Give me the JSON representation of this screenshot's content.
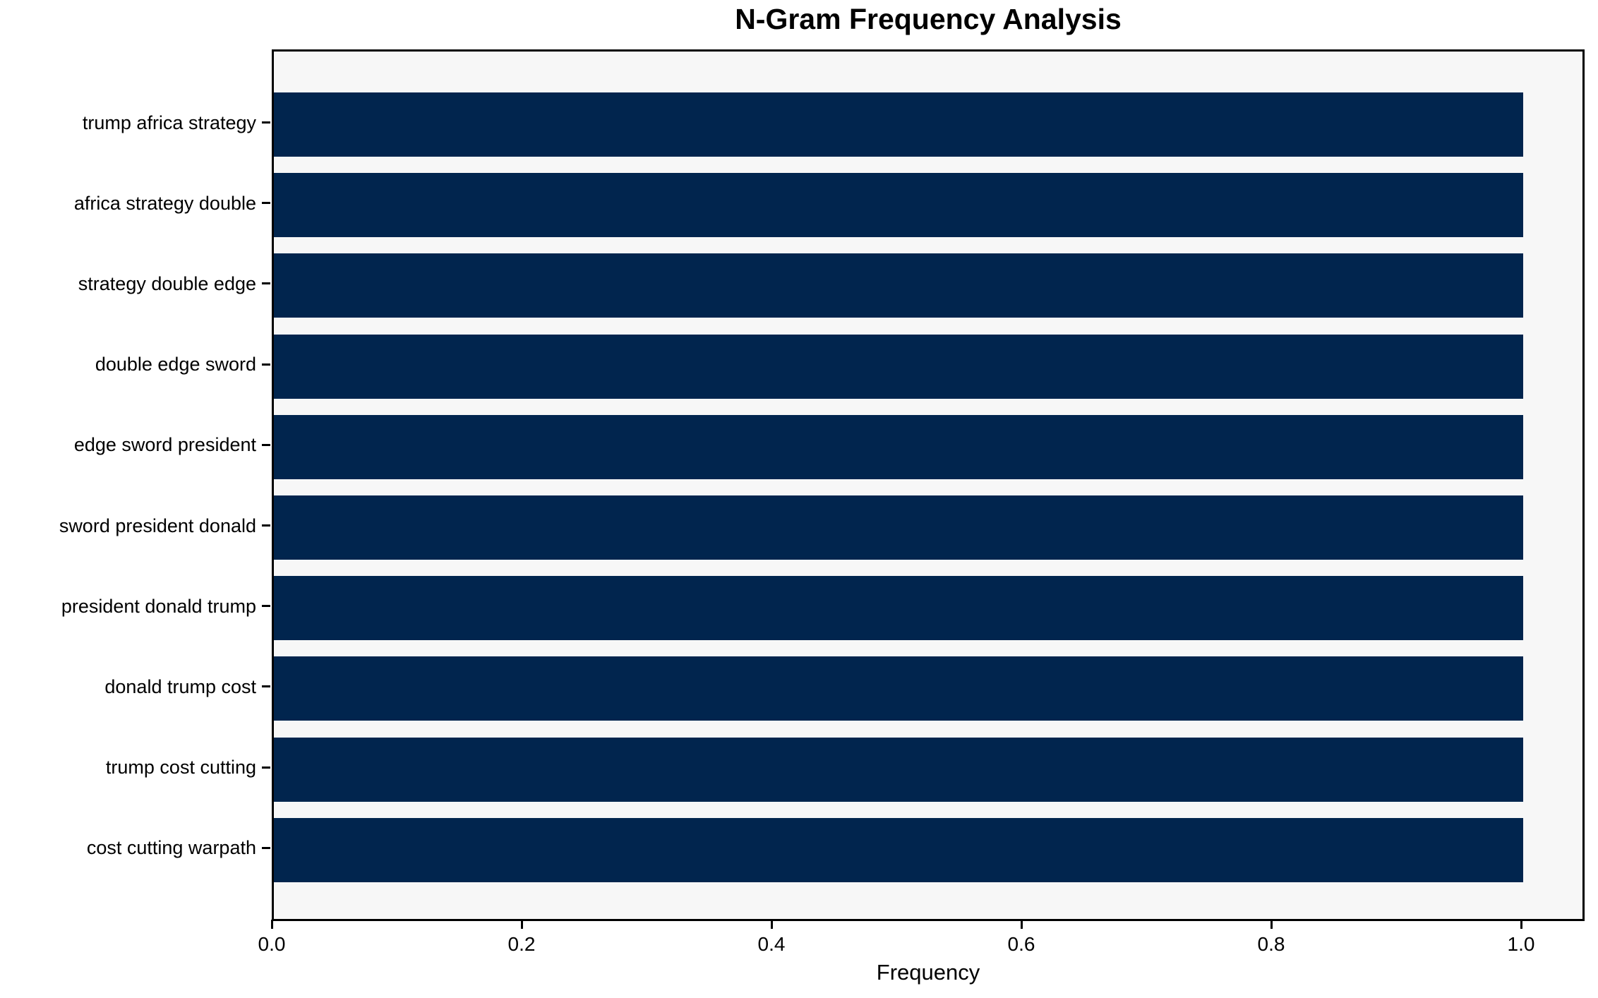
{
  "chart_data": {
    "type": "bar",
    "orientation": "horizontal",
    "title": "N-Gram Frequency Analysis",
    "xlabel": "Frequency",
    "ylabel": "",
    "categories": [
      "trump africa strategy",
      "africa strategy double",
      "strategy double edge",
      "double edge sword",
      "edge sword president",
      "sword president donald",
      "president donald trump",
      "donald trump cost",
      "trump cost cutting",
      "cost cutting warpath"
    ],
    "values": [
      1.0,
      1.0,
      1.0,
      1.0,
      1.0,
      1.0,
      1.0,
      1.0,
      1.0,
      1.0
    ],
    "x_ticks": [
      "0.0",
      "0.2",
      "0.4",
      "0.6",
      "0.8",
      "1.0"
    ],
    "xlim": [
      0,
      1.05
    ],
    "grid": false,
    "legend": null,
    "colors": {
      "bar": "#01254e",
      "plot_background": "#f7f7f7",
      "figure_background": "#ffffff",
      "axis_frame": "#000000",
      "text": "#000000"
    }
  }
}
